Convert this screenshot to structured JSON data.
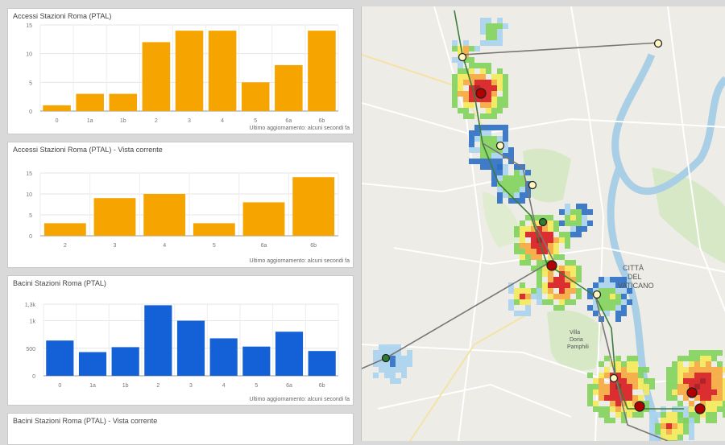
{
  "panels": [
    {
      "title": "Accessi Stazioni Roma (PTAL)",
      "footer": "Ultimo aggiornamento: alcuni secondi fa",
      "chart_data": {
        "type": "bar",
        "categories": [
          "0",
          "1a",
          "1b",
          "2",
          "3",
          "4",
          "5",
          "6a",
          "6b"
        ],
        "values": [
          1,
          3,
          3,
          12,
          14,
          14,
          5,
          8,
          14
        ],
        "ylim": [
          0,
          15
        ],
        "yticks": [
          "0",
          "5",
          "10",
          "15"
        ],
        "ytick_values": [
          0,
          5,
          10,
          15
        ],
        "color": "#f5a400",
        "grid": true
      }
    },
    {
      "title": "Accessi Stazioni Roma (PTAL) - Vista corrente",
      "footer": "Ultimo aggiornamento: alcuni secondi fa",
      "chart_data": {
        "type": "bar",
        "categories": [
          "2",
          "3",
          "4",
          "5",
          "6a",
          "6b"
        ],
        "values": [
          3,
          9,
          10,
          3,
          8,
          14
        ],
        "ylim": [
          0,
          15
        ],
        "yticks": [
          "0",
          "5",
          "10",
          "15"
        ],
        "ytick_values": [
          0,
          5,
          10,
          15
        ],
        "color": "#f5a400",
        "grid": true
      }
    },
    {
      "title": "Bacini Stazioni Roma (PTAL)",
      "footer": "Ultimo aggiornamento: alcuni secondi fa",
      "chart_data": {
        "type": "bar",
        "categories": [
          "0",
          "1a",
          "1b",
          "2",
          "3",
          "4",
          "5",
          "6a",
          "6b"
        ],
        "values": [
          640,
          430,
          520,
          1280,
          1000,
          680,
          530,
          800,
          450
        ],
        "ylim": [
          0,
          1300
        ],
        "yticks": [
          "0",
          "500",
          "1k",
          "1,3k"
        ],
        "ytick_values": [
          0,
          500,
          1000,
          1300
        ],
        "color": "#1460d6",
        "grid": true
      }
    },
    {
      "title": "Bacini Stazioni Roma (PTAL) - Vista corrente"
    }
  ],
  "map": {
    "labels": [
      "CITTÀ",
      "DEL",
      "VATICANO",
      "Villa",
      "Doria",
      "Pamphili"
    ],
    "colors": {
      "red": "#d7191c",
      "darkred": "#a50f15",
      "orange": "#f7a83c",
      "yellow": "#f4ea58",
      "green": "#7fd35b",
      "lightblue": "#a7d4ee",
      "blue": "#2c6fc4"
    }
  }
}
